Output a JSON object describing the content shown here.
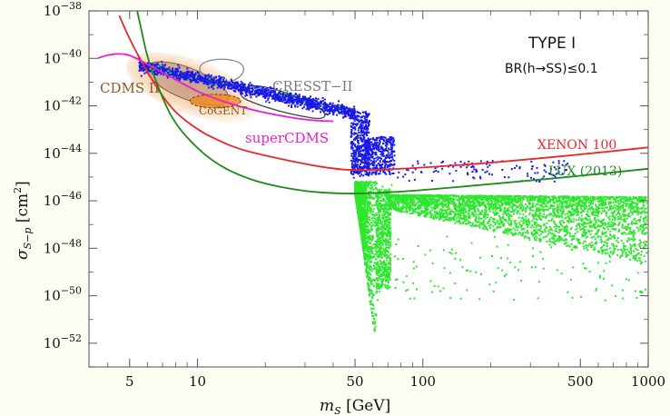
{
  "chart_data": {
    "type": "scatter",
    "x_scale": "log",
    "y_scale": "log",
    "xlim": [
      3.3,
      1000
    ],
    "ylim": [
      1e-53,
      1e-38
    ],
    "xlabel": "m_S [GeV]",
    "ylabel": "σ_{S−p} [cm²]",
    "x_ticks": [
      5,
      10,
      50,
      100,
      500,
      1000
    ],
    "y_ticks": [
      {
        "label": "10^-38",
        "exp": -38
      },
      {
        "label": "10^-40",
        "exp": -40
      },
      {
        "label": "10^-42",
        "exp": -42
      },
      {
        "label": "10^-44",
        "exp": -44
      },
      {
        "label": "10^-46",
        "exp": -46
      },
      {
        "label": "10^-48",
        "exp": -48
      },
      {
        "label": "10^-50",
        "exp": -50
      },
      {
        "label": "10^-52",
        "exp": -52
      }
    ],
    "grid": false,
    "annotations": {
      "model": "TYPE I",
      "constraint": "BR(h→SS)≤0.1"
    },
    "curves": [
      {
        "name": "XENON 100",
        "color": "#e8282a",
        "x": [
          4.5,
          5,
          6,
          7,
          8,
          10,
          12,
          15,
          20,
          30,
          40,
          50,
          70,
          100,
          200,
          500,
          1000
        ],
        "y_exp": [
          -38.2,
          -39.2,
          -40.6,
          -41.6,
          -42.3,
          -43.0,
          -43.4,
          -43.8,
          -44.1,
          -44.45,
          -44.65,
          -44.72,
          -44.68,
          -44.6,
          -44.4,
          -44.05,
          -43.75
        ]
      },
      {
        "name": "LUX (2013)",
        "color": "#1c8a1c",
        "x": [
          5.4,
          5.7,
          6,
          7,
          8,
          10,
          12,
          15,
          20,
          30,
          40,
          50,
          70,
          100,
          200,
          500,
          1000
        ],
        "y_exp": [
          -38.0,
          -39.0,
          -40.0,
          -41.7,
          -42.8,
          -43.8,
          -44.4,
          -44.9,
          -45.3,
          -45.6,
          -45.68,
          -45.7,
          -45.65,
          -45.55,
          -45.3,
          -44.95,
          -44.65
        ]
      },
      {
        "name": "superCDMS",
        "color": "#e81ed6",
        "x": [
          3.6,
          4,
          4.5,
          5,
          6,
          7,
          8,
          10,
          12,
          15,
          20,
          30,
          40
        ],
        "y_exp": [
          -40.0,
          -39.85,
          -39.8,
          -39.85,
          -40.25,
          -40.6,
          -40.9,
          -41.4,
          -41.7,
          -42.0,
          -42.3,
          -42.6,
          -42.65
        ]
      }
    ],
    "regions": [
      {
        "name": "CDMS II",
        "x_center": 9.0,
        "y_exp_center": -41.2
      },
      {
        "name": "CoGENT",
        "x_center": 12.0,
        "y_exp_center": -41.8
      },
      {
        "name": "CRESST−II",
        "x_center": 25.0,
        "y_exp_center": -41.5
      }
    ],
    "series": [
      {
        "name": "",
        "color": "#1a1ae6",
        "description_points": [
          {
            "x": 5.5,
            "y_exp": -40.3
          },
          {
            "x": 8,
            "y_exp": -40.8
          },
          {
            "x": 15,
            "y_exp": -41.4
          },
          {
            "x": 25,
            "y_exp": -41.8
          },
          {
            "x": 40,
            "y_exp": -42.2
          },
          {
            "x": 50,
            "y_exp": -42.5
          },
          {
            "x": 52,
            "y_exp": -44.5
          },
          {
            "x": 60,
            "y_exp": -43.5
          },
          {
            "x": 65,
            "y_exp": -44.0
          },
          {
            "x": 90,
            "y_exp": -44.6
          },
          {
            "x": 150,
            "y_exp": -44.5
          },
          {
            "x": 300,
            "y_exp": -44.7
          }
        ]
      },
      {
        "name": "",
        "color": "#2ee62e",
        "description_points": [
          {
            "x": 50,
            "y_exp": -45.5
          },
          {
            "x": 55,
            "y_exp": -48
          },
          {
            "x": 60,
            "y_exp": -52.5
          },
          {
            "x": 65,
            "y_exp": -49
          },
          {
            "x": 70,
            "y_exp": -46
          },
          {
            "x": 100,
            "y_exp": -46.2
          },
          {
            "x": 300,
            "y_exp": -46.5
          },
          {
            "x": 1000,
            "y_exp": -46.8
          }
        ]
      }
    ],
    "labels": {
      "xenon": "XENON 100",
      "lux": "LUX (2013)",
      "supercdms": "superCDMS",
      "cdms": "CDMS II",
      "cogent": "CoGENT",
      "cresst": "CRESST−II"
    }
  },
  "axis_text": {
    "xlabel_main": "m",
    "xlabel_sub": "S",
    "xlabel_unit": " [GeV]",
    "ylabel_main": "σ",
    "ylabel_sub": "S−p",
    "ylabel_unit": " [cm",
    "ylabel_sup": "2",
    "ylabel_close": "]"
  }
}
